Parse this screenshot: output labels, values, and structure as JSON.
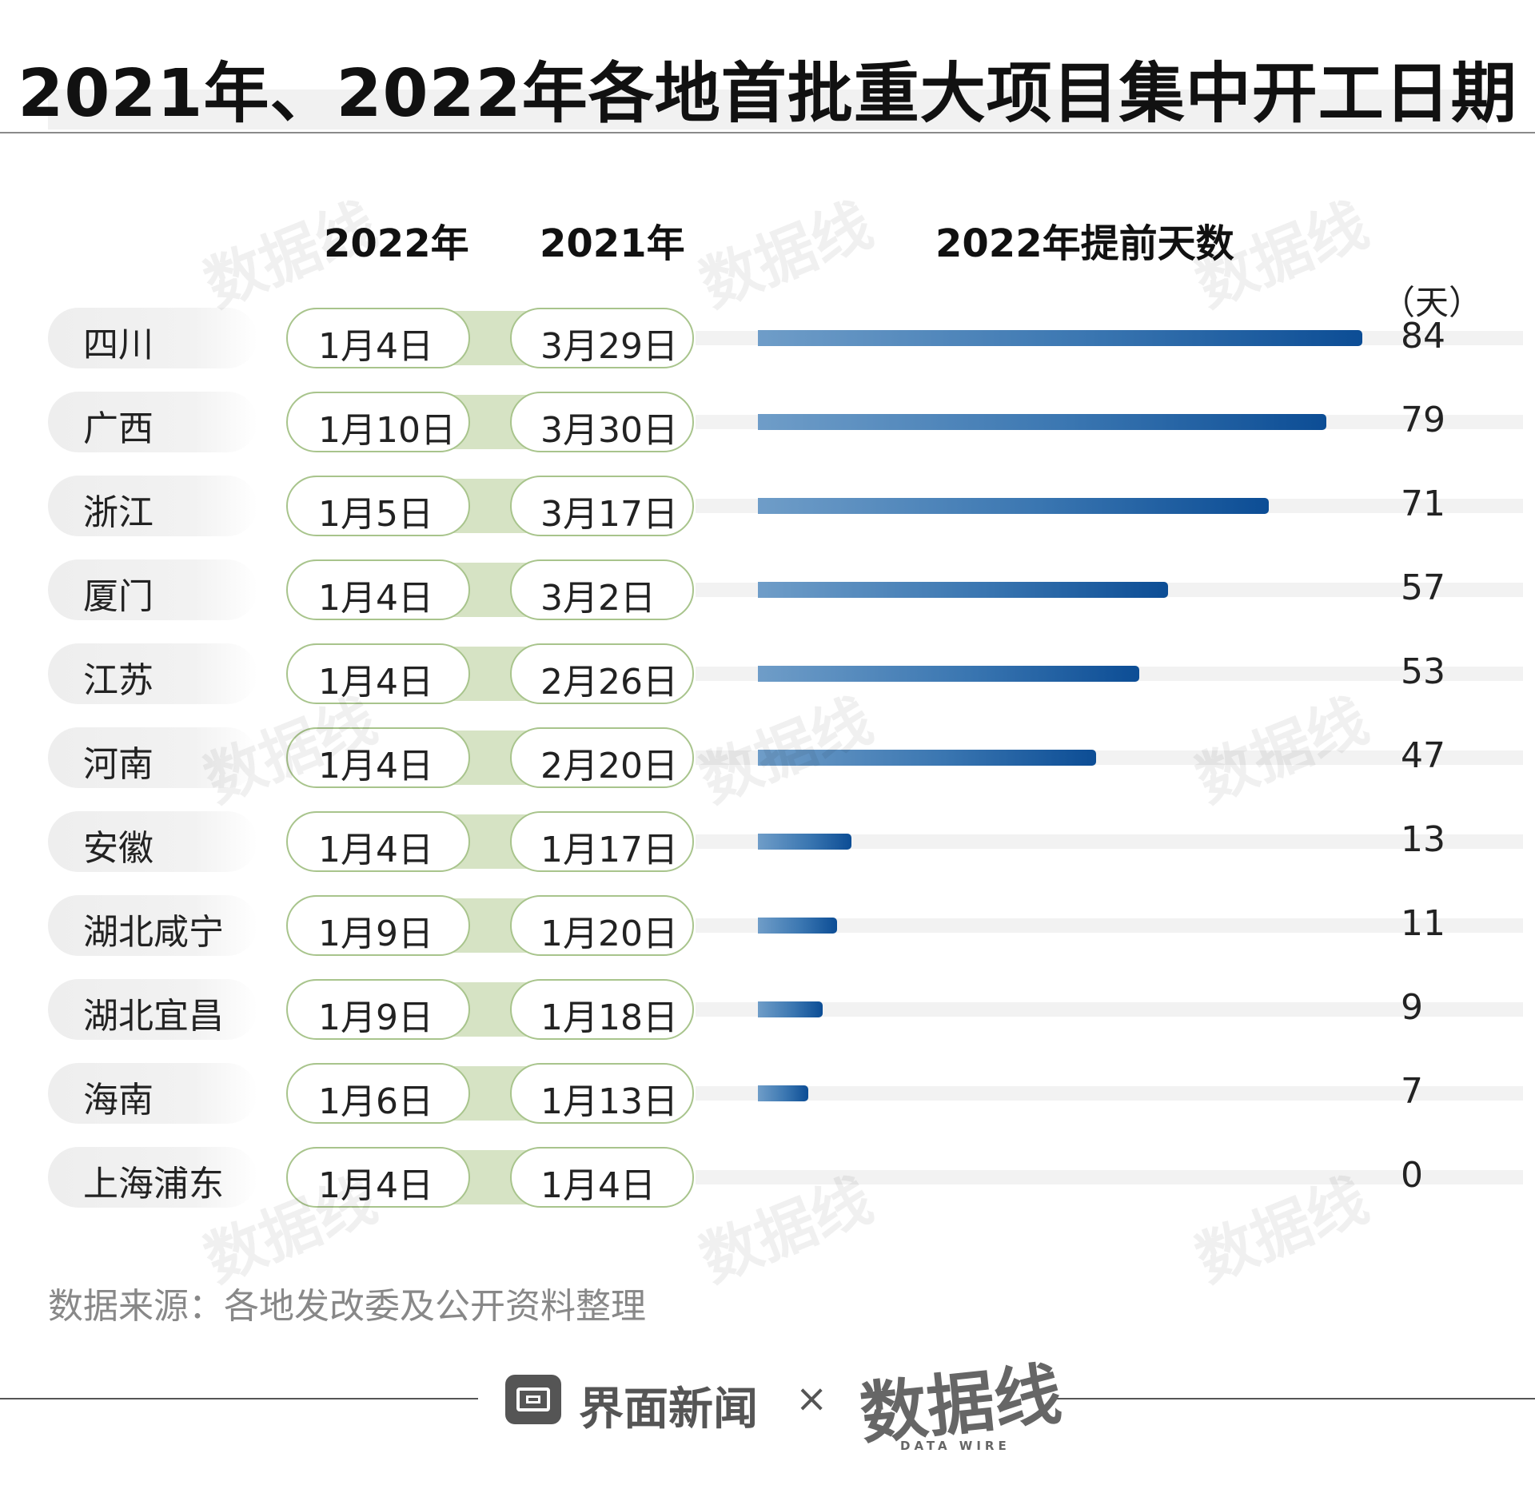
{
  "title": "2021年、2022年各地首批重大项目集中开工日期",
  "headers": {
    "col_2022": "2022年",
    "col_2021": "2021年",
    "col_days": "2022年提前天数",
    "unit": "（天）"
  },
  "chart_data": {
    "type": "bar",
    "orientation": "horizontal",
    "xlim": [
      0,
      84
    ],
    "grid": false,
    "categories": [
      "四川",
      "广西",
      "浙江",
      "厦门",
      "江苏",
      "河南",
      "安徽",
      "湖北咸宁",
      "湖北宜昌",
      "海南",
      "上海浦东"
    ],
    "dates_2022": [
      "1月4日",
      "1月10日",
      "1月5日",
      "1月4日",
      "1月4日",
      "1月4日",
      "1月4日",
      "1月9日",
      "1月9日",
      "1月6日",
      "1月4日"
    ],
    "dates_2021": [
      "3月29日",
      "3月30日",
      "3月17日",
      "3月2日",
      "2月26日",
      "2月20日",
      "1月17日",
      "1月20日",
      "1月18日",
      "1月13日",
      "1月4日"
    ],
    "values": [
      84,
      79,
      71,
      57,
      53,
      47,
      13,
      11,
      9,
      7,
      0
    ],
    "value_labels": [
      "84",
      "79",
      "71",
      "57",
      "53",
      "47",
      "13",
      "11",
      "9",
      "7",
      "0"
    ],
    "colors": {
      "bar_start": "#6f9dc8",
      "bar_end": "#0c4d95",
      "track": "#f2f2f2",
      "pill_border": "#a8c48c",
      "connector": "#d6e3c4"
    }
  },
  "source": "数据来源：各地发改委及公开资料整理",
  "footer": {
    "brand": "界面新闻",
    "separator": "×",
    "partner": "数据线",
    "partner_sub": "DATA WIRE"
  },
  "watermark": "数据线"
}
